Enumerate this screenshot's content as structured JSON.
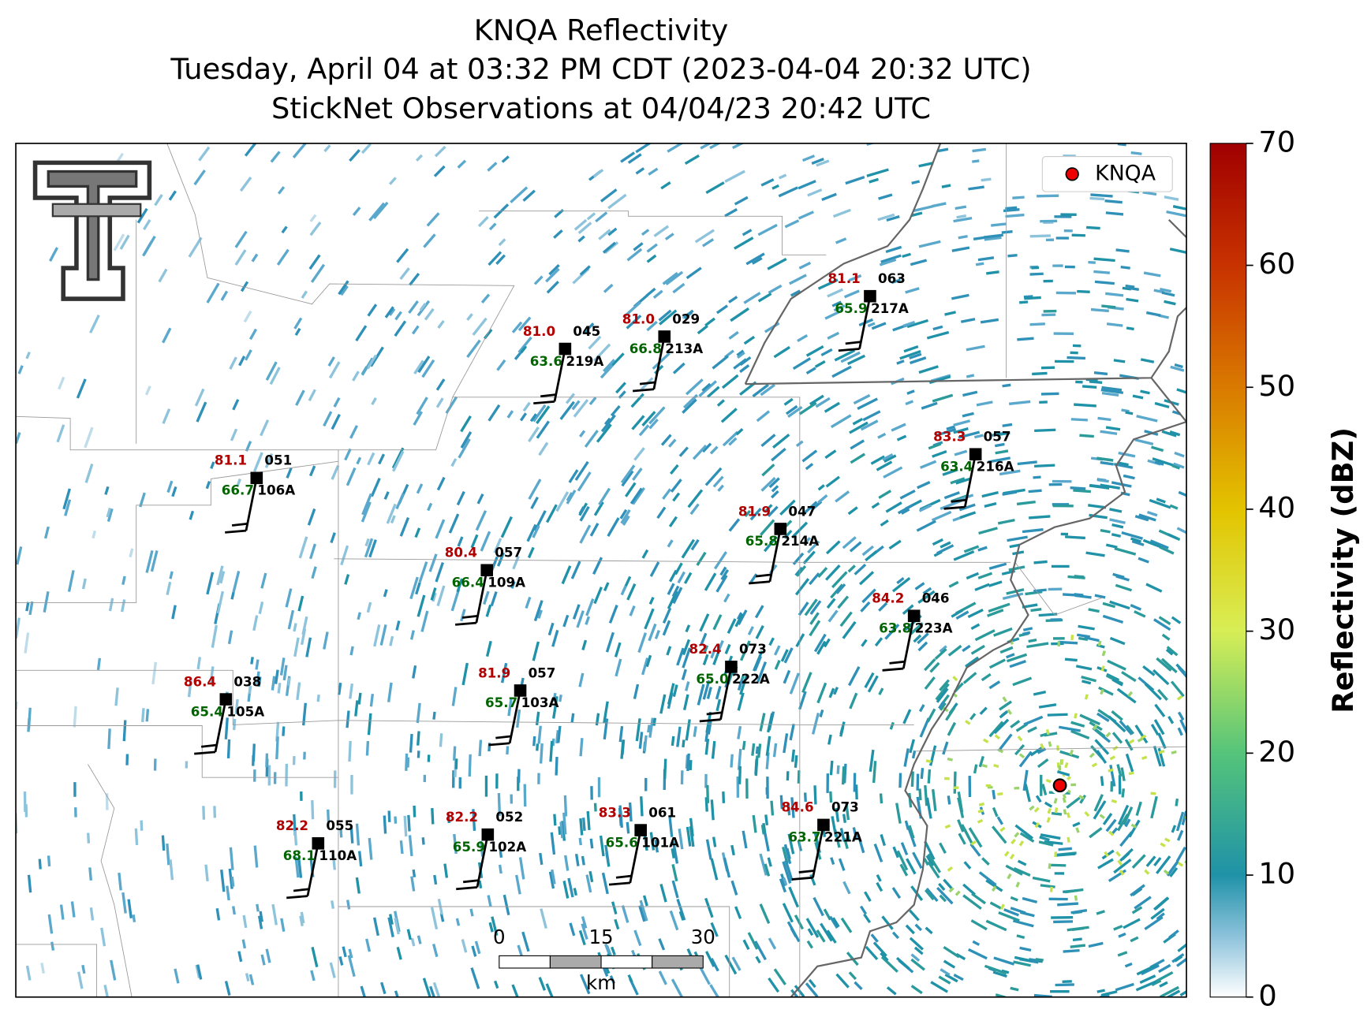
{
  "title": [
    "KNQA Reflectivity",
    "Tuesday, April 04 at 03:32 PM CDT (2023-04-04 20:32 UTC)",
    "StickNet Observations at 04/04/23 20:42 UTC"
  ],
  "legend": "KNQA",
  "colorbar": {
    "label": "Reflectivity (dBZ)",
    "lim": [
      0,
      70
    ],
    "ticks": [
      0,
      10,
      20,
      30,
      40,
      50,
      60,
      70
    ]
  },
  "scale_bar": {
    "ticks": [
      0,
      15,
      30
    ],
    "unit": "km"
  },
  "stations": [
    {
      "id": "106A",
      "temp": "81.1",
      "dew": "66.7",
      "code": "051"
    },
    {
      "id": "219A",
      "temp": "81.0",
      "dew": "63.6",
      "code": "045"
    },
    {
      "id": "213A",
      "temp": "81.0",
      "dew": "66.8",
      "code": "029"
    },
    {
      "id": "217A",
      "temp": "81.1",
      "dew": "65.9",
      "code": "063"
    },
    {
      "id": "216A",
      "temp": "83.3",
      "dew": "63.4",
      "code": "057"
    },
    {
      "id": "214A",
      "temp": "81.9",
      "dew": "65.8",
      "code": "047"
    },
    {
      "id": "109A",
      "temp": "80.4",
      "dew": "66.4",
      "code": "057"
    },
    {
      "id": "223A",
      "temp": "84.2",
      "dew": "63.8",
      "code": "046"
    },
    {
      "id": "222A",
      "temp": "82.4",
      "dew": "65.0",
      "code": "073"
    },
    {
      "id": "103A",
      "temp": "81.9",
      "dew": "65.7",
      "code": "057"
    },
    {
      "id": "105A",
      "temp": "86.4",
      "dew": "65.4",
      "code": "038"
    },
    {
      "id": "110A",
      "temp": "82.2",
      "dew": "68.1",
      "code": "055"
    },
    {
      "id": "102A",
      "temp": "82.2",
      "dew": "65.9",
      "code": "052"
    },
    {
      "id": "101A",
      "temp": "83.3",
      "dew": "65.6",
      "code": "061"
    },
    {
      "id": "221A",
      "temp": "84.6",
      "dew": "63.7",
      "code": "073"
    }
  ]
}
